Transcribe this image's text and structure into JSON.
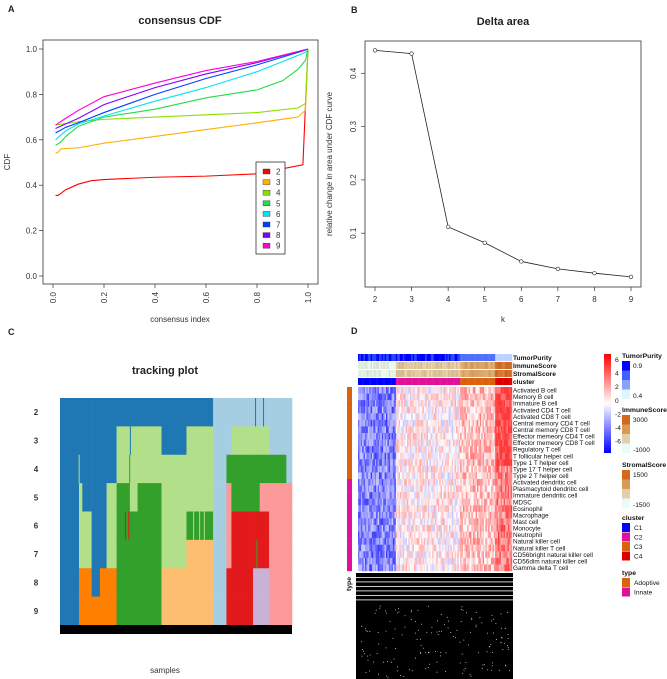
{
  "panel_labels": {
    "a": "A",
    "b": "B",
    "c": "C",
    "d": "D"
  },
  "chart_data": [
    {
      "type": "line",
      "title": "consensus CDF",
      "xlabel": "consensus index",
      "ylabel": "CDF",
      "xlim": [
        0,
        1
      ],
      "ylim": [
        0,
        1
      ],
      "xticks": [
        "0.0",
        "0.2",
        "0.4",
        "0.6",
        "0.8",
        "1.0"
      ],
      "yticks": [
        "0.0",
        "0.2",
        "0.4",
        "0.6",
        "0.8",
        "1.0"
      ],
      "legend_position": "bottom-right",
      "series": [
        {
          "name": "2",
          "color": "#ff0000",
          "x": [
            0.01,
            0.02,
            0.05,
            0.1,
            0.15,
            0.2,
            0.4,
            0.6,
            0.8,
            0.98,
            0.99,
            1.0
          ],
          "y": [
            0.355,
            0.355,
            0.38,
            0.405,
            0.42,
            0.425,
            0.435,
            0.44,
            0.45,
            0.49,
            0.75,
            1.0
          ]
        },
        {
          "name": "3",
          "color": "#ffb000",
          "x": [
            0.01,
            0.02,
            0.03,
            0.1,
            0.2,
            0.4,
            0.6,
            0.8,
            0.96,
            0.99,
            1.0
          ],
          "y": [
            0.54,
            0.545,
            0.56,
            0.565,
            0.585,
            0.615,
            0.645,
            0.675,
            0.7,
            0.73,
            1.0
          ]
        },
        {
          "name": "4",
          "color": "#88e000",
          "x": [
            0.01,
            0.1,
            0.2,
            0.4,
            0.6,
            0.8,
            0.96,
            0.99,
            1.0
          ],
          "y": [
            0.665,
            0.68,
            0.69,
            0.7,
            0.71,
            0.72,
            0.74,
            0.76,
            1.0
          ]
        },
        {
          "name": "5",
          "color": "#22dd44",
          "x": [
            0.01,
            0.03,
            0.05,
            0.1,
            0.2,
            0.4,
            0.6,
            0.8,
            0.9,
            0.96,
            0.99,
            1.0
          ],
          "y": [
            0.575,
            0.59,
            0.615,
            0.66,
            0.7,
            0.735,
            0.785,
            0.82,
            0.86,
            0.91,
            0.95,
            1.0
          ]
        },
        {
          "name": "6",
          "color": "#00e5ee",
          "x": [
            0.01,
            0.05,
            0.1,
            0.2,
            0.4,
            0.6,
            0.8,
            0.99,
            1.0
          ],
          "y": [
            0.6,
            0.64,
            0.67,
            0.705,
            0.77,
            0.83,
            0.9,
            0.985,
            1.0
          ]
        },
        {
          "name": "7",
          "color": "#0040ff",
          "x": [
            0.01,
            0.05,
            0.1,
            0.2,
            0.4,
            0.6,
            0.8,
            0.99
          ],
          "y": [
            0.63,
            0.655,
            0.675,
            0.72,
            0.8,
            0.87,
            0.93,
            0.995
          ]
        },
        {
          "name": "8",
          "color": "#8000ff",
          "x": [
            0.01,
            0.05,
            0.1,
            0.2,
            0.4,
            0.6,
            0.8,
            1.0
          ],
          "y": [
            0.65,
            0.67,
            0.695,
            0.755,
            0.83,
            0.89,
            0.94,
            1.0
          ]
        },
        {
          "name": "9",
          "color": "#ff00d0",
          "x": [
            0.01,
            0.05,
            0.1,
            0.2,
            0.4,
            0.6,
            0.8,
            1.0
          ],
          "y": [
            0.665,
            0.695,
            0.73,
            0.79,
            0.85,
            0.905,
            0.945,
            1.0
          ]
        }
      ]
    },
    {
      "type": "line",
      "title": "Delta area",
      "xlabel": "k",
      "ylabel": "relative change in area under CDF curve",
      "x": [
        2,
        3,
        4,
        5,
        6,
        7,
        8,
        9
      ],
      "y": [
        0.443,
        0.437,
        0.112,
        0.082,
        0.047,
        0.033,
        0.025,
        0.018
      ],
      "xticks": [
        "2",
        "3",
        "4",
        "5",
        "6",
        "7",
        "8",
        "9"
      ],
      "yticks": [
        "0.1",
        "0.2",
        "0.3",
        "0.4"
      ],
      "xlim": [
        1.9,
        9.1
      ],
      "ylim": [
        0.0,
        0.46
      ]
    },
    {
      "type": "heatmap",
      "title": "tracking plot",
      "xlabel": "samples",
      "row_labels": [
        "2",
        "3",
        "4",
        "5",
        "6",
        "7",
        "8",
        "9"
      ],
      "cluster_colors": [
        "#1f78b4",
        "#a6cee3",
        "#b2df8a",
        "#33a02c",
        "#fb9a99",
        "#e31a1c",
        "#fdbf6f",
        "#ff7f00",
        "#cab2d6"
      ]
    },
    {
      "type": "heatmap",
      "annotation_rows": [
        "TumorPurity",
        "ImmuneScore",
        "StromalScore",
        "cluster"
      ],
      "row_labels": [
        "Activated B cell",
        "Memory B cell",
        "Immature  B cell",
        "Activated CD4 T cell",
        "Activated CD8 T cell",
        "Central memory CD4 T cell",
        "Central memory CD8 T cell",
        "Effector memeory CD4 T cell",
        "Effector memeory CD8 T cell",
        "Regulatory T cell",
        "T follicular helper cell",
        "Type 1 T helper cell",
        "Type 17 T helper cell",
        "Type 2 T helper cell",
        "Activated dendritic cell",
        "Plasmacytoid dendritic cell",
        "Immature dendritic cell",
        "MDSC",
        "Eosinophil",
        "Macrophage",
        "Mast cell",
        "Monocyte",
        "Neutrophil",
        "Natural killer cell",
        "Natural killer T cell",
        "CD56bright natural killer cell",
        "CD56dim natural killer cell",
        "Gamma delta T cell"
      ],
      "row_type": [
        "Adoptive",
        "Adoptive",
        "Adoptive",
        "Adoptive",
        "Adoptive",
        "Adoptive",
        "Adoptive",
        "Adoptive",
        "Adoptive",
        "Adoptive",
        "Adoptive",
        "Adoptive",
        "Adoptive",
        "Adoptive",
        "Innate",
        "Innate",
        "Innate",
        "Innate",
        "Innate",
        "Innate",
        "Innate",
        "Innate",
        "Innate",
        "Innate",
        "Innate",
        "Innate",
        "Innate",
        "Innate"
      ],
      "color_scale": {
        "ticks": [
          "6",
          "4",
          "2",
          "0",
          "-2",
          "-4",
          "-6"
        ],
        "low": "#0000ff",
        "mid": "#ffffff",
        "high": "#ff0000"
      },
      "bottom_label": "type",
      "legends": {
        "tumor_purity": {
          "title": "TumorPurity",
          "labels": [
            "0.9",
            "0.4"
          ],
          "colors": [
            "#0000ff",
            "#4060ff",
            "#8aa0ff",
            "#e0f4ff"
          ]
        },
        "immune_score": {
          "title": "ImmuneScore",
          "labels": [
            "3000",
            "-1000"
          ],
          "colors": [
            "#d2691e",
            "#d89a55",
            "#e0cfa8",
            "#e8fafa"
          ]
        },
        "stromal_score": {
          "title": "StromalScore",
          "labels": [
            "1500",
            "-1500"
          ],
          "colors": [
            "#d2691e",
            "#d89a55",
            "#e0cfa8",
            "#e8fafa"
          ]
        },
        "cluster": {
          "title": "cluster",
          "items": [
            {
              "label": "C1",
              "color": "#0000ff"
            },
            {
              "label": "C2",
              "color": "#e0109a"
            },
            {
              "label": "C3",
              "color": "#d9620f"
            },
            {
              "label": "C4",
              "color": "#dd0000"
            }
          ]
        },
        "type": {
          "title": "type",
          "items": [
            {
              "label": "Adoptive",
              "color": "#d9620f"
            },
            {
              "label": "Innate",
              "color": "#e0109a"
            }
          ]
        }
      }
    }
  ]
}
